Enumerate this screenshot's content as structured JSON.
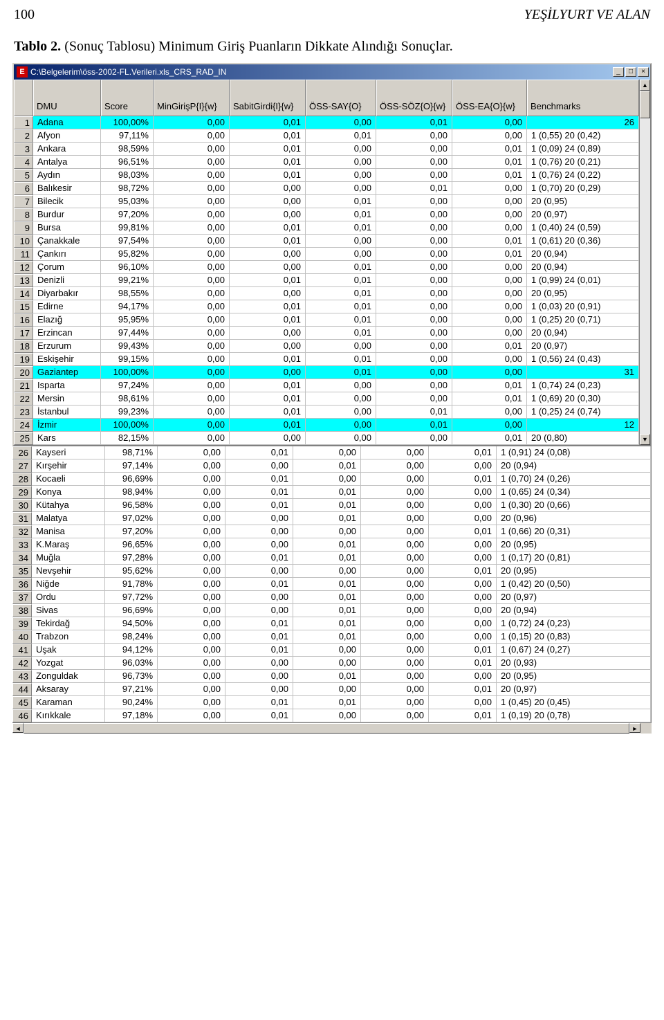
{
  "page": {
    "number": "100",
    "header_right": "YEŞİLYURT VE ALAN",
    "tablo_label": "Tablo 2.",
    "tablo_text": "(Sonuç Tablosu) Minimum Giriş Puanların Dikkate Alındığı Sonuçlar."
  },
  "window": {
    "app_icon_letter": "E",
    "title": "C:\\Belgelerim\\öss-2002-FL.Verileri.xls_CRS_RAD_IN",
    "min": "_",
    "max": "□",
    "close": "×"
  },
  "columns": [
    "DMU",
    "Score",
    "MinGirişP{I}{w}",
    "SabitGirdi{I}{w}",
    "ÖSS-SAY{O}",
    "ÖSS-SÖZ{O}{w}",
    "ÖSS-EA{O}{w}",
    "Benchmarks"
  ],
  "rows1": [
    {
      "n": 1,
      "hl": true,
      "dmu": "Adana",
      "score": "100,00%",
      "c": [
        "0,00",
        "0,01",
        "0,00",
        "0,01",
        "0,00"
      ],
      "b": "26"
    },
    {
      "n": 2,
      "dmu": "Afyon",
      "score": "97,11%",
      "c": [
        "0,00",
        "0,01",
        "0,01",
        "0,00",
        "0,00"
      ],
      "b": "1 (0,55)  20 (0,42)"
    },
    {
      "n": 3,
      "dmu": "Ankara",
      "score": "98,59%",
      "c": [
        "0,00",
        "0,01",
        "0,00",
        "0,00",
        "0,01"
      ],
      "b": "1 (0,09)  24 (0,89)"
    },
    {
      "n": 4,
      "dmu": "Antalya",
      "score": "96,51%",
      "c": [
        "0,00",
        "0,01",
        "0,00",
        "0,00",
        "0,01"
      ],
      "b": "1 (0,76)  20 (0,21)"
    },
    {
      "n": 5,
      "dmu": "Aydın",
      "score": "98,03%",
      "c": [
        "0,00",
        "0,01",
        "0,00",
        "0,00",
        "0,01"
      ],
      "b": "1 (0,76)  24 (0,22)"
    },
    {
      "n": 6,
      "dmu": "Balıkesir",
      "score": "98,72%",
      "c": [
        "0,00",
        "0,00",
        "0,00",
        "0,01",
        "0,00"
      ],
      "b": "1 (0,70)  20 (0,29)"
    },
    {
      "n": 7,
      "dmu": "Bilecik",
      "score": "95,03%",
      "c": [
        "0,00",
        "0,00",
        "0,01",
        "0,00",
        "0,00"
      ],
      "b": "20 (0,95)"
    },
    {
      "n": 8,
      "dmu": "Burdur",
      "score": "97,20%",
      "c": [
        "0,00",
        "0,00",
        "0,01",
        "0,00",
        "0,00"
      ],
      "b": "20 (0,97)"
    },
    {
      "n": 9,
      "dmu": "Bursa",
      "score": "99,81%",
      "c": [
        "0,00",
        "0,01",
        "0,01",
        "0,00",
        "0,00"
      ],
      "b": "1 (0,40)  24 (0,59)"
    },
    {
      "n": 10,
      "dmu": "Çanakkale",
      "score": "97,54%",
      "c": [
        "0,00",
        "0,01",
        "0,00",
        "0,00",
        "0,01"
      ],
      "b": "1 (0,61)  20 (0,36)"
    },
    {
      "n": 11,
      "dmu": "Çankırı",
      "score": "95,82%",
      "c": [
        "0,00",
        "0,00",
        "0,00",
        "0,00",
        "0,01"
      ],
      "b": "20 (0,94)"
    },
    {
      "n": 12,
      "dmu": "Çorum",
      "score": "96,10%",
      "c": [
        "0,00",
        "0,00",
        "0,01",
        "0,00",
        "0,00"
      ],
      "b": "20 (0,94)"
    },
    {
      "n": 13,
      "dmu": "Denizli",
      "score": "99,21%",
      "c": [
        "0,00",
        "0,01",
        "0,01",
        "0,00",
        "0,00"
      ],
      "b": "1 (0,99)  24 (0,01)"
    },
    {
      "n": 14,
      "dmu": "Diyarbakır",
      "score": "98,55%",
      "c": [
        "0,00",
        "0,00",
        "0,01",
        "0,00",
        "0,00"
      ],
      "b": "20 (0,95)"
    },
    {
      "n": 15,
      "dmu": "Edirne",
      "score": "94,17%",
      "c": [
        "0,00",
        "0,01",
        "0,01",
        "0,00",
        "0,00"
      ],
      "b": "1 (0,03)  20 (0,91)"
    },
    {
      "n": 16,
      "dmu": "Elazığ",
      "score": "95,95%",
      "c": [
        "0,00",
        "0,01",
        "0,01",
        "0,00",
        "0,00"
      ],
      "b": "1 (0,25)  20 (0,71)"
    },
    {
      "n": 17,
      "dmu": "Erzincan",
      "score": "97,44%",
      "c": [
        "0,00",
        "0,00",
        "0,01",
        "0,00",
        "0,00"
      ],
      "b": "20 (0,94)"
    },
    {
      "n": 18,
      "dmu": "Erzurum",
      "score": "99,43%",
      "c": [
        "0,00",
        "0,00",
        "0,00",
        "0,00",
        "0,01"
      ],
      "b": "20 (0,97)"
    },
    {
      "n": 19,
      "dmu": "Eskişehir",
      "score": "99,15%",
      "c": [
        "0,00",
        "0,01",
        "0,01",
        "0,00",
        "0,00"
      ],
      "b": "1 (0,56)  24 (0,43)"
    },
    {
      "n": 20,
      "hl": true,
      "dmu": "Gaziantep",
      "score": "100,00%",
      "c": [
        "0,00",
        "0,00",
        "0,01",
        "0,00",
        "0,00"
      ],
      "b": "31"
    },
    {
      "n": 21,
      "dmu": "Isparta",
      "score": "97,24%",
      "c": [
        "0,00",
        "0,01",
        "0,00",
        "0,00",
        "0,01"
      ],
      "b": "1 (0,74)  24 (0,23)"
    },
    {
      "n": 22,
      "dmu": "Mersin",
      "score": "98,61%",
      "c": [
        "0,00",
        "0,01",
        "0,00",
        "0,00",
        "0,01"
      ],
      "b": "1 (0,69)  20 (0,30)"
    },
    {
      "n": 23,
      "dmu": "İstanbul",
      "score": "99,23%",
      "c": [
        "0,00",
        "0,01",
        "0,00",
        "0,01",
        "0,00"
      ],
      "b": "1 (0,25)  24 (0,74)"
    },
    {
      "n": 24,
      "hl": true,
      "dmu": "İzmir",
      "score": "100,00%",
      "c": [
        "0,00",
        "0,01",
        "0,00",
        "0,01",
        "0,00"
      ],
      "b": "12"
    },
    {
      "n": 25,
      "dmu": "Kars",
      "score": "82,15%",
      "c": [
        "0,00",
        "0,00",
        "0,00",
        "0,00",
        "0,01"
      ],
      "b": "20 (0,80)"
    }
  ],
  "rows2": [
    {
      "n": 26,
      "dmu": "Kayseri",
      "score": "98,71%",
      "c": [
        "0,00",
        "0,01",
        "0,00",
        "0,00",
        "0,01"
      ],
      "b": "1 (0,91)  24 (0,08)"
    },
    {
      "n": 27,
      "dmu": "Kırşehir",
      "score": "97,14%",
      "c": [
        "0,00",
        "0,00",
        "0,01",
        "0,00",
        "0,00"
      ],
      "b": "20 (0,94)"
    },
    {
      "n": 28,
      "dmu": "Kocaeli",
      "score": "96,69%",
      "c": [
        "0,00",
        "0,01",
        "0,00",
        "0,00",
        "0,01"
      ],
      "b": "1 (0,70)  24 (0,26)"
    },
    {
      "n": 29,
      "dmu": "Konya",
      "score": "98,94%",
      "c": [
        "0,00",
        "0,01",
        "0,01",
        "0,00",
        "0,00"
      ],
      "b": "1 (0,65)  24 (0,34)"
    },
    {
      "n": 30,
      "dmu": "Kütahya",
      "score": "96,58%",
      "c": [
        "0,00",
        "0,01",
        "0,01",
        "0,00",
        "0,00"
      ],
      "b": "1 (0,30)  20 (0,66)"
    },
    {
      "n": 31,
      "dmu": "Malatya",
      "score": "97,02%",
      "c": [
        "0,00",
        "0,00",
        "0,01",
        "0,00",
        "0,00"
      ],
      "b": "20 (0,96)"
    },
    {
      "n": 32,
      "dmu": "Manisa",
      "score": "97,20%",
      "c": [
        "0,00",
        "0,00",
        "0,00",
        "0,00",
        "0,01"
      ],
      "b": "1 (0,66)  20 (0,31)"
    },
    {
      "n": 33,
      "dmu": "K.Maraş",
      "score": "96,65%",
      "c": [
        "0,00",
        "0,00",
        "0,01",
        "0,00",
        "0,00"
      ],
      "b": "20 (0,95)"
    },
    {
      "n": 34,
      "dmu": "Muğla",
      "score": "97,28%",
      "c": [
        "0,00",
        "0,01",
        "0,01",
        "0,00",
        "0,00"
      ],
      "b": "1 (0,17)  20 (0,81)"
    },
    {
      "n": 35,
      "dmu": "Nevşehir",
      "score": "95,62%",
      "c": [
        "0,00",
        "0,00",
        "0,00",
        "0,00",
        "0,01"
      ],
      "b": "20 (0,95)"
    },
    {
      "n": 36,
      "dmu": "Niğde",
      "score": "91,78%",
      "c": [
        "0,00",
        "0,01",
        "0,01",
        "0,00",
        "0,00"
      ],
      "b": "1 (0,42)  20 (0,50)"
    },
    {
      "n": 37,
      "dmu": "Ordu",
      "score": "97,72%",
      "c": [
        "0,00",
        "0,00",
        "0,01",
        "0,00",
        "0,00"
      ],
      "b": "20 (0,97)"
    },
    {
      "n": 38,
      "dmu": "Sivas",
      "score": "96,69%",
      "c": [
        "0,00",
        "0,00",
        "0,01",
        "0,00",
        "0,00"
      ],
      "b": "20 (0,94)"
    },
    {
      "n": 39,
      "dmu": "Tekirdağ",
      "score": "94,50%",
      "c": [
        "0,00",
        "0,01",
        "0,01",
        "0,00",
        "0,00"
      ],
      "b": "1 (0,72)  24 (0,23)"
    },
    {
      "n": 40,
      "dmu": "Trabzon",
      "score": "98,24%",
      "c": [
        "0,00",
        "0,01",
        "0,01",
        "0,00",
        "0,00"
      ],
      "b": "1 (0,15)  20 (0,83)"
    },
    {
      "n": 41,
      "dmu": "Uşak",
      "score": "94,12%",
      "c": [
        "0,00",
        "0,01",
        "0,00",
        "0,00",
        "0,01"
      ],
      "b": "1 (0,67)  24 (0,27)"
    },
    {
      "n": 42,
      "dmu": "Yozgat",
      "score": "96,03%",
      "c": [
        "0,00",
        "0,00",
        "0,00",
        "0,00",
        "0,01"
      ],
      "b": "20 (0,93)"
    },
    {
      "n": 43,
      "dmu": "Zonguldak",
      "score": "96,73%",
      "c": [
        "0,00",
        "0,00",
        "0,01",
        "0,00",
        "0,00"
      ],
      "b": "20 (0,95)"
    },
    {
      "n": 44,
      "dmu": "Aksaray",
      "score": "97,21%",
      "c": [
        "0,00",
        "0,00",
        "0,00",
        "0,00",
        "0,01"
      ],
      "b": "20 (0,97)"
    },
    {
      "n": 45,
      "dmu": "Karaman",
      "score": "90,24%",
      "c": [
        "0,00",
        "0,01",
        "0,01",
        "0,00",
        "0,00"
      ],
      "b": "1 (0,45)  20 (0,45)"
    },
    {
      "n": 46,
      "dmu": "Kırıkkale",
      "score": "97,18%",
      "c": [
        "0,00",
        "0,01",
        "0,00",
        "0,00",
        "0,01"
      ],
      "b": "1 (0,19)  20 (0,78)"
    }
  ],
  "scroll": {
    "up": "▲",
    "down": "▼",
    "left": "◄",
    "right": "►"
  }
}
